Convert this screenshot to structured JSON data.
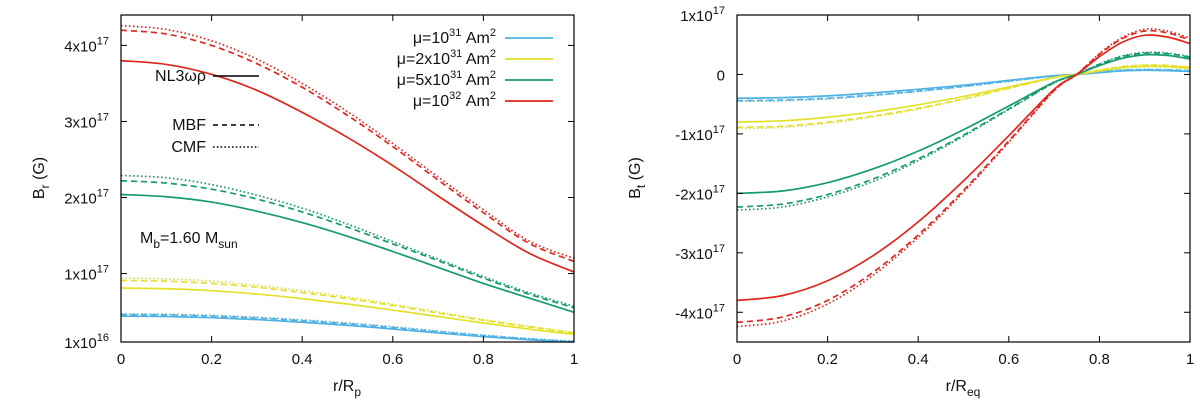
{
  "colors": {
    "mu_1e31": "#4fb2e3",
    "mu_2e31": "#e5e02a",
    "mu_5e31": "#149b6e",
    "mu_1e32": "#e0261b"
  },
  "annotations": {
    "mass_label_main": "M",
    "mass_label_sub": "b",
    "mass_label_mid": "=1.60 M",
    "mass_label_sub2": "sun"
  },
  "legend": {
    "eos": [
      {
        "label": "NL3ωρ",
        "dash": "solid"
      },
      {
        "label": "MBF",
        "dash": "dashed"
      },
      {
        "label": "CMF",
        "dash": "dotted"
      }
    ],
    "moments": [
      {
        "pre": "μ=10",
        "exp": "31",
        "post": " Am",
        "unit_exp": "2"
      },
      {
        "pre": "μ=2x10",
        "exp": "31",
        "post": " Am",
        "unit_exp": "2"
      },
      {
        "pre": "μ=5x10",
        "exp": "31",
        "post": " Am",
        "unit_exp": "2"
      },
      {
        "pre": "μ=10",
        "exp": "32",
        "post": " Am",
        "unit_exp": "2"
      }
    ]
  },
  "chart_data": [
    {
      "type": "line",
      "title": "",
      "xlabel": {
        "main": "r/R",
        "sub": "p"
      },
      "ylabel": {
        "main": "B",
        "sub": "r",
        "post": " (G)"
      },
      "xlim": [
        0,
        1
      ],
      "ylim": [
        1e+16,
        4.4e+17
      ],
      "x_ticks": [
        "0",
        "0.2",
        "0.4",
        "0.6",
        "0.8",
        "1"
      ],
      "y_ticks": [
        {
          "value": 1e+16,
          "mant": "1x10",
          "exp": "16"
        },
        {
          "value": 1e+17,
          "mant": "1x10",
          "exp": "17"
        },
        {
          "value": 2e+17,
          "mant": "2x10",
          "exp": "17"
        },
        {
          "value": 3e+17,
          "mant": "3x10",
          "exp": "17"
        },
        {
          "value": 4e+17,
          "mant": "4x10",
          "exp": "17"
        }
      ],
      "x": [
        0,
        0.1,
        0.2,
        0.3,
        0.4,
        0.5,
        0.6,
        0.7,
        0.8,
        0.9,
        1.0
      ],
      "series": [
        {
          "name": "NL3ωρ μ=10^31",
          "color_key": "mu_1e31",
          "dash": "solid",
          "values": [
            4.4e+16,
            4.35e+16,
            4.2e+16,
            3.95e+16,
            3.6e+16,
            3.2e+16,
            2.7e+16,
            2.2e+16,
            1.7e+16,
            1.3e+16,
            1e+16
          ]
        },
        {
          "name": "MBF μ=10^31",
          "color_key": "mu_1e31",
          "dash": "dashed",
          "values": [
            4.6e+16,
            4.55e+16,
            4.4e+16,
            4.15e+16,
            3.8e+16,
            3.4e+16,
            2.9e+16,
            2.35e+16,
            1.85e+16,
            1.4e+16,
            1.05e+16
          ]
        },
        {
          "name": "CMF μ=10^31",
          "color_key": "mu_1e31",
          "dash": "dotted",
          "values": [
            4.7e+16,
            4.65e+16,
            4.5e+16,
            4.25e+16,
            3.9e+16,
            3.5e+16,
            3e+16,
            2.45e+16,
            1.9e+16,
            1.45e+16,
            1.1e+16
          ]
        },
        {
          "name": "NL3ωρ μ=2x10^31",
          "color_key": "mu_2e31",
          "dash": "solid",
          "values": [
            8.1e+16,
            8e+16,
            7.75e+16,
            7.3e+16,
            6.7e+16,
            6e+16,
            5.2e+16,
            4.35e+16,
            3.5e+16,
            2.7e+16,
            2e+16
          ]
        },
        {
          "name": "MBF μ=2x10^31",
          "color_key": "mu_2e31",
          "dash": "dashed",
          "values": [
            9.1e+16,
            9e+16,
            8.7e+16,
            8.2e+16,
            7.5e+16,
            6.7e+16,
            5.8e+16,
            4.8e+16,
            3.85e+16,
            3e+16,
            2.2e+16
          ]
        },
        {
          "name": "CMF μ=2x10^31",
          "color_key": "mu_2e31",
          "dash": "dotted",
          "values": [
            9.4e+16,
            9.3e+16,
            9e+16,
            8.45e+16,
            7.75e+16,
            6.9e+16,
            5.95e+16,
            4.95e+16,
            3.95e+16,
            3.05e+16,
            2.25e+16
          ]
        },
        {
          "name": "NL3ωρ μ=5x10^31",
          "color_key": "mu_5e31",
          "dash": "solid",
          "values": [
            2.04e+17,
            2.01e+17,
            1.94e+17,
            1.82e+17,
            1.67e+17,
            1.49e+17,
            1.29e+17,
            1.08e+17,
            8.7e+16,
            6.8e+16,
            4.9e+16
          ]
        },
        {
          "name": "MBF μ=5x10^31",
          "color_key": "mu_5e31",
          "dash": "dashed",
          "values": [
            2.22e+17,
            2.19e+17,
            2.11e+17,
            1.98e+17,
            1.81e+17,
            1.61e+17,
            1.39e+17,
            1.17e+17,
            9.4e+16,
            7.3e+16,
            5.5e+16
          ]
        },
        {
          "name": "CMF μ=5x10^31",
          "color_key": "mu_5e31",
          "dash": "dotted",
          "values": [
            2.29e+17,
            2.26e+17,
            2.17e+17,
            2.03e+17,
            1.86e+17,
            1.65e+17,
            1.42e+17,
            1.19e+17,
            9.6e+16,
            7.5e+16,
            5.7e+16
          ]
        },
        {
          "name": "NL3ωρ μ=10^32",
          "color_key": "mu_1e32",
          "dash": "solid",
          "values": [
            3.8e+17,
            3.75e+17,
            3.62e+17,
            3.41e+17,
            3.12e+17,
            2.79e+17,
            2.42e+17,
            2.02e+17,
            1.63e+17,
            1.27e+17,
            1.02e+17
          ]
        },
        {
          "name": "MBF μ=10^32",
          "color_key": "mu_1e32",
          "dash": "dashed",
          "values": [
            4.2e+17,
            4.15e+17,
            4e+17,
            3.76e+17,
            3.45e+17,
            3.08e+17,
            2.67e+17,
            2.23e+17,
            1.8e+17,
            1.4e+17,
            1.16e+17
          ]
        },
        {
          "name": "CMF μ=10^32",
          "color_key": "mu_1e32",
          "dash": "dotted",
          "values": [
            4.26e+17,
            4.21e+17,
            4.06e+17,
            3.82e+17,
            3.5e+17,
            3.13e+17,
            2.71e+17,
            2.27e+17,
            1.84e+17,
            1.43e+17,
            1.2e+17
          ]
        }
      ]
    },
    {
      "type": "line",
      "title": "",
      "xlabel": {
        "main": "r/R",
        "sub": "eq"
      },
      "ylabel": {
        "main": "B",
        "sub": "t",
        "post": " (G)"
      },
      "xlim": [
        0,
        1
      ],
      "ylim": [
        -4.5e+17,
        1e+17
      ],
      "x_ticks": [
        "0",
        "0.2",
        "0.4",
        "0.6",
        "0.8",
        "1"
      ],
      "y_ticks": [
        {
          "value": 1e+17,
          "mant": "1x10",
          "exp": "17"
        },
        {
          "value": 0,
          "mant": "0",
          "exp": ""
        },
        {
          "value": -1e+17,
          "mant": "-1x10",
          "exp": "17"
        },
        {
          "value": -2e+17,
          "mant": "-2x10",
          "exp": "17"
        },
        {
          "value": -3e+17,
          "mant": "-3x10",
          "exp": "17"
        },
        {
          "value": -4e+17,
          "mant": "-4x10",
          "exp": "17"
        }
      ],
      "x": [
        0,
        0.1,
        0.2,
        0.3,
        0.4,
        0.5,
        0.6,
        0.7,
        0.75,
        0.8,
        0.85,
        0.9,
        0.95,
        1.0
      ],
      "series": [
        {
          "name": "NL3ωρ μ=10^31",
          "color_key": "mu_1e31",
          "dash": "solid",
          "values": [
            -4e+16,
            -3.9e+16,
            -3.6e+16,
            -3.1e+16,
            -2.5e+16,
            -1.8e+16,
            -1e+16,
            -2000000000000000.0,
            0,
            3000000000000000.0,
            6000000000000000.0,
            7000000000000000.0,
            6500000000000000.0,
            5000000000000000.0
          ]
        },
        {
          "name": "MBF μ=10^31",
          "color_key": "mu_1e31",
          "dash": "dashed",
          "values": [
            -4.4e+16,
            -4.3e+16,
            -4e+16,
            -3.45e+16,
            -2.8e+16,
            -2e+16,
            -1.1e+16,
            -2500000000000000.0,
            0,
            4000000000000000.0,
            7000000000000000.0,
            8000000000000000.0,
            7500000000000000.0,
            6000000000000000.0
          ]
        },
        {
          "name": "CMF μ=10^31",
          "color_key": "mu_1e31",
          "dash": "dotted",
          "values": [
            -4.5e+16,
            -4.4e+16,
            -4.1e+16,
            -3.55e+16,
            -2.85e+16,
            -2.05e+16,
            -1.15e+16,
            -2500000000000000.0,
            0,
            4000000000000000.0,
            7500000000000000.0,
            8500000000000000.0,
            8000000000000000.0,
            6500000000000000.0
          ]
        },
        {
          "name": "NL3ωρ μ=2x10^31",
          "color_key": "mu_2e31",
          "dash": "solid",
          "values": [
            -8e+16,
            -7.8e+16,
            -7.2e+16,
            -6.3e+16,
            -5.1e+16,
            -3.7e+16,
            -2.1e+16,
            -5000000000000000.0,
            0,
            6000000000000000.0,
            1.1e+16,
            1.35e+16,
            1.3e+16,
            1e+16
          ]
        },
        {
          "name": "MBF μ=2x10^31",
          "color_key": "mu_2e31",
          "dash": "dashed",
          "values": [
            -8.9e+16,
            -8.7e+16,
            -8e+16,
            -7e+16,
            -5.7e+16,
            -4.1e+16,
            -2.3e+16,
            -5500000000000000.0,
            0,
            7000000000000000.0,
            1.3e+16,
            1.55e+16,
            1.5e+16,
            1.2e+16
          ]
        },
        {
          "name": "CMF μ=2x10^31",
          "color_key": "mu_2e31",
          "dash": "dotted",
          "values": [
            -9.1e+16,
            -8.9e+16,
            -8.2e+16,
            -7.15e+16,
            -5.8e+16,
            -4.2e+16,
            -2.35e+16,
            -5500000000000000.0,
            0,
            7500000000000000.0,
            1.35e+16,
            1.6e+16,
            1.55e+16,
            1.25e+16
          ]
        },
        {
          "name": "NL3ωρ μ=5x10^31",
          "color_key": "mu_5e31",
          "dash": "solid",
          "values": [
            -2e+17,
            -1.96e+17,
            -1.82e+17,
            -1.59e+17,
            -1.29e+17,
            -9.3e+16,
            -5.3e+16,
            -1.3e+16,
            0,
            1.5e+16,
            2.7e+16,
            3.3e+16,
            3.2e+16,
            2.6e+16
          ]
        },
        {
          "name": "MBF μ=5x10^31",
          "color_key": "mu_5e31",
          "dash": "dashed",
          "values": [
            -2.23e+17,
            -2.18e+17,
            -2.02e+17,
            -1.76e+17,
            -1.42e+17,
            -1.02e+17,
            -5.8e+16,
            -1.4e+16,
            0,
            1.7e+16,
            3e+16,
            3.6e+16,
            3.5e+16,
            2.9e+16
          ]
        },
        {
          "name": "CMF μ=5x10^31",
          "color_key": "mu_5e31",
          "dash": "dotted",
          "values": [
            -2.28e+17,
            -2.23e+17,
            -2.06e+17,
            -1.8e+17,
            -1.45e+17,
            -1.04e+17,
            -5.9e+16,
            -1.4e+16,
            0,
            1.75e+16,
            3.1e+16,
            3.7e+16,
            3.6e+16,
            3e+16
          ]
        },
        {
          "name": "NL3ωρ μ=10^32",
          "color_key": "mu_1e32",
          "dash": "solid",
          "values": [
            -3.8e+17,
            -3.72e+17,
            -3.47e+17,
            -3.05e+17,
            -2.48e+17,
            -1.79e+17,
            -1.03e+17,
            -2.5e+16,
            0,
            3e+16,
            5.4e+16,
            6.6e+16,
            6.3e+16,
            5.2e+16
          ]
        },
        {
          "name": "MBF μ=10^32",
          "color_key": "mu_1e32",
          "dash": "dashed",
          "values": [
            -4.17e+17,
            -4.08e+17,
            -3.8e+17,
            -3.33e+17,
            -2.7e+17,
            -1.95e+17,
            -1.12e+17,
            -2.7e+16,
            0,
            3.4e+16,
            6e+16,
            7.3e+16,
            7e+16,
            5.8e+16
          ]
        },
        {
          "name": "CMF μ=10^32",
          "color_key": "mu_1e32",
          "dash": "dotted",
          "values": [
            -4.24e+17,
            -4.15e+17,
            -3.86e+17,
            -3.38e+17,
            -2.74e+17,
            -1.98e+17,
            -1.14e+17,
            -2.75e+16,
            0,
            3.5e+16,
            6.2e+16,
            7.6e+16,
            7.3e+16,
            6.1e+16
          ]
        }
      ]
    }
  ]
}
